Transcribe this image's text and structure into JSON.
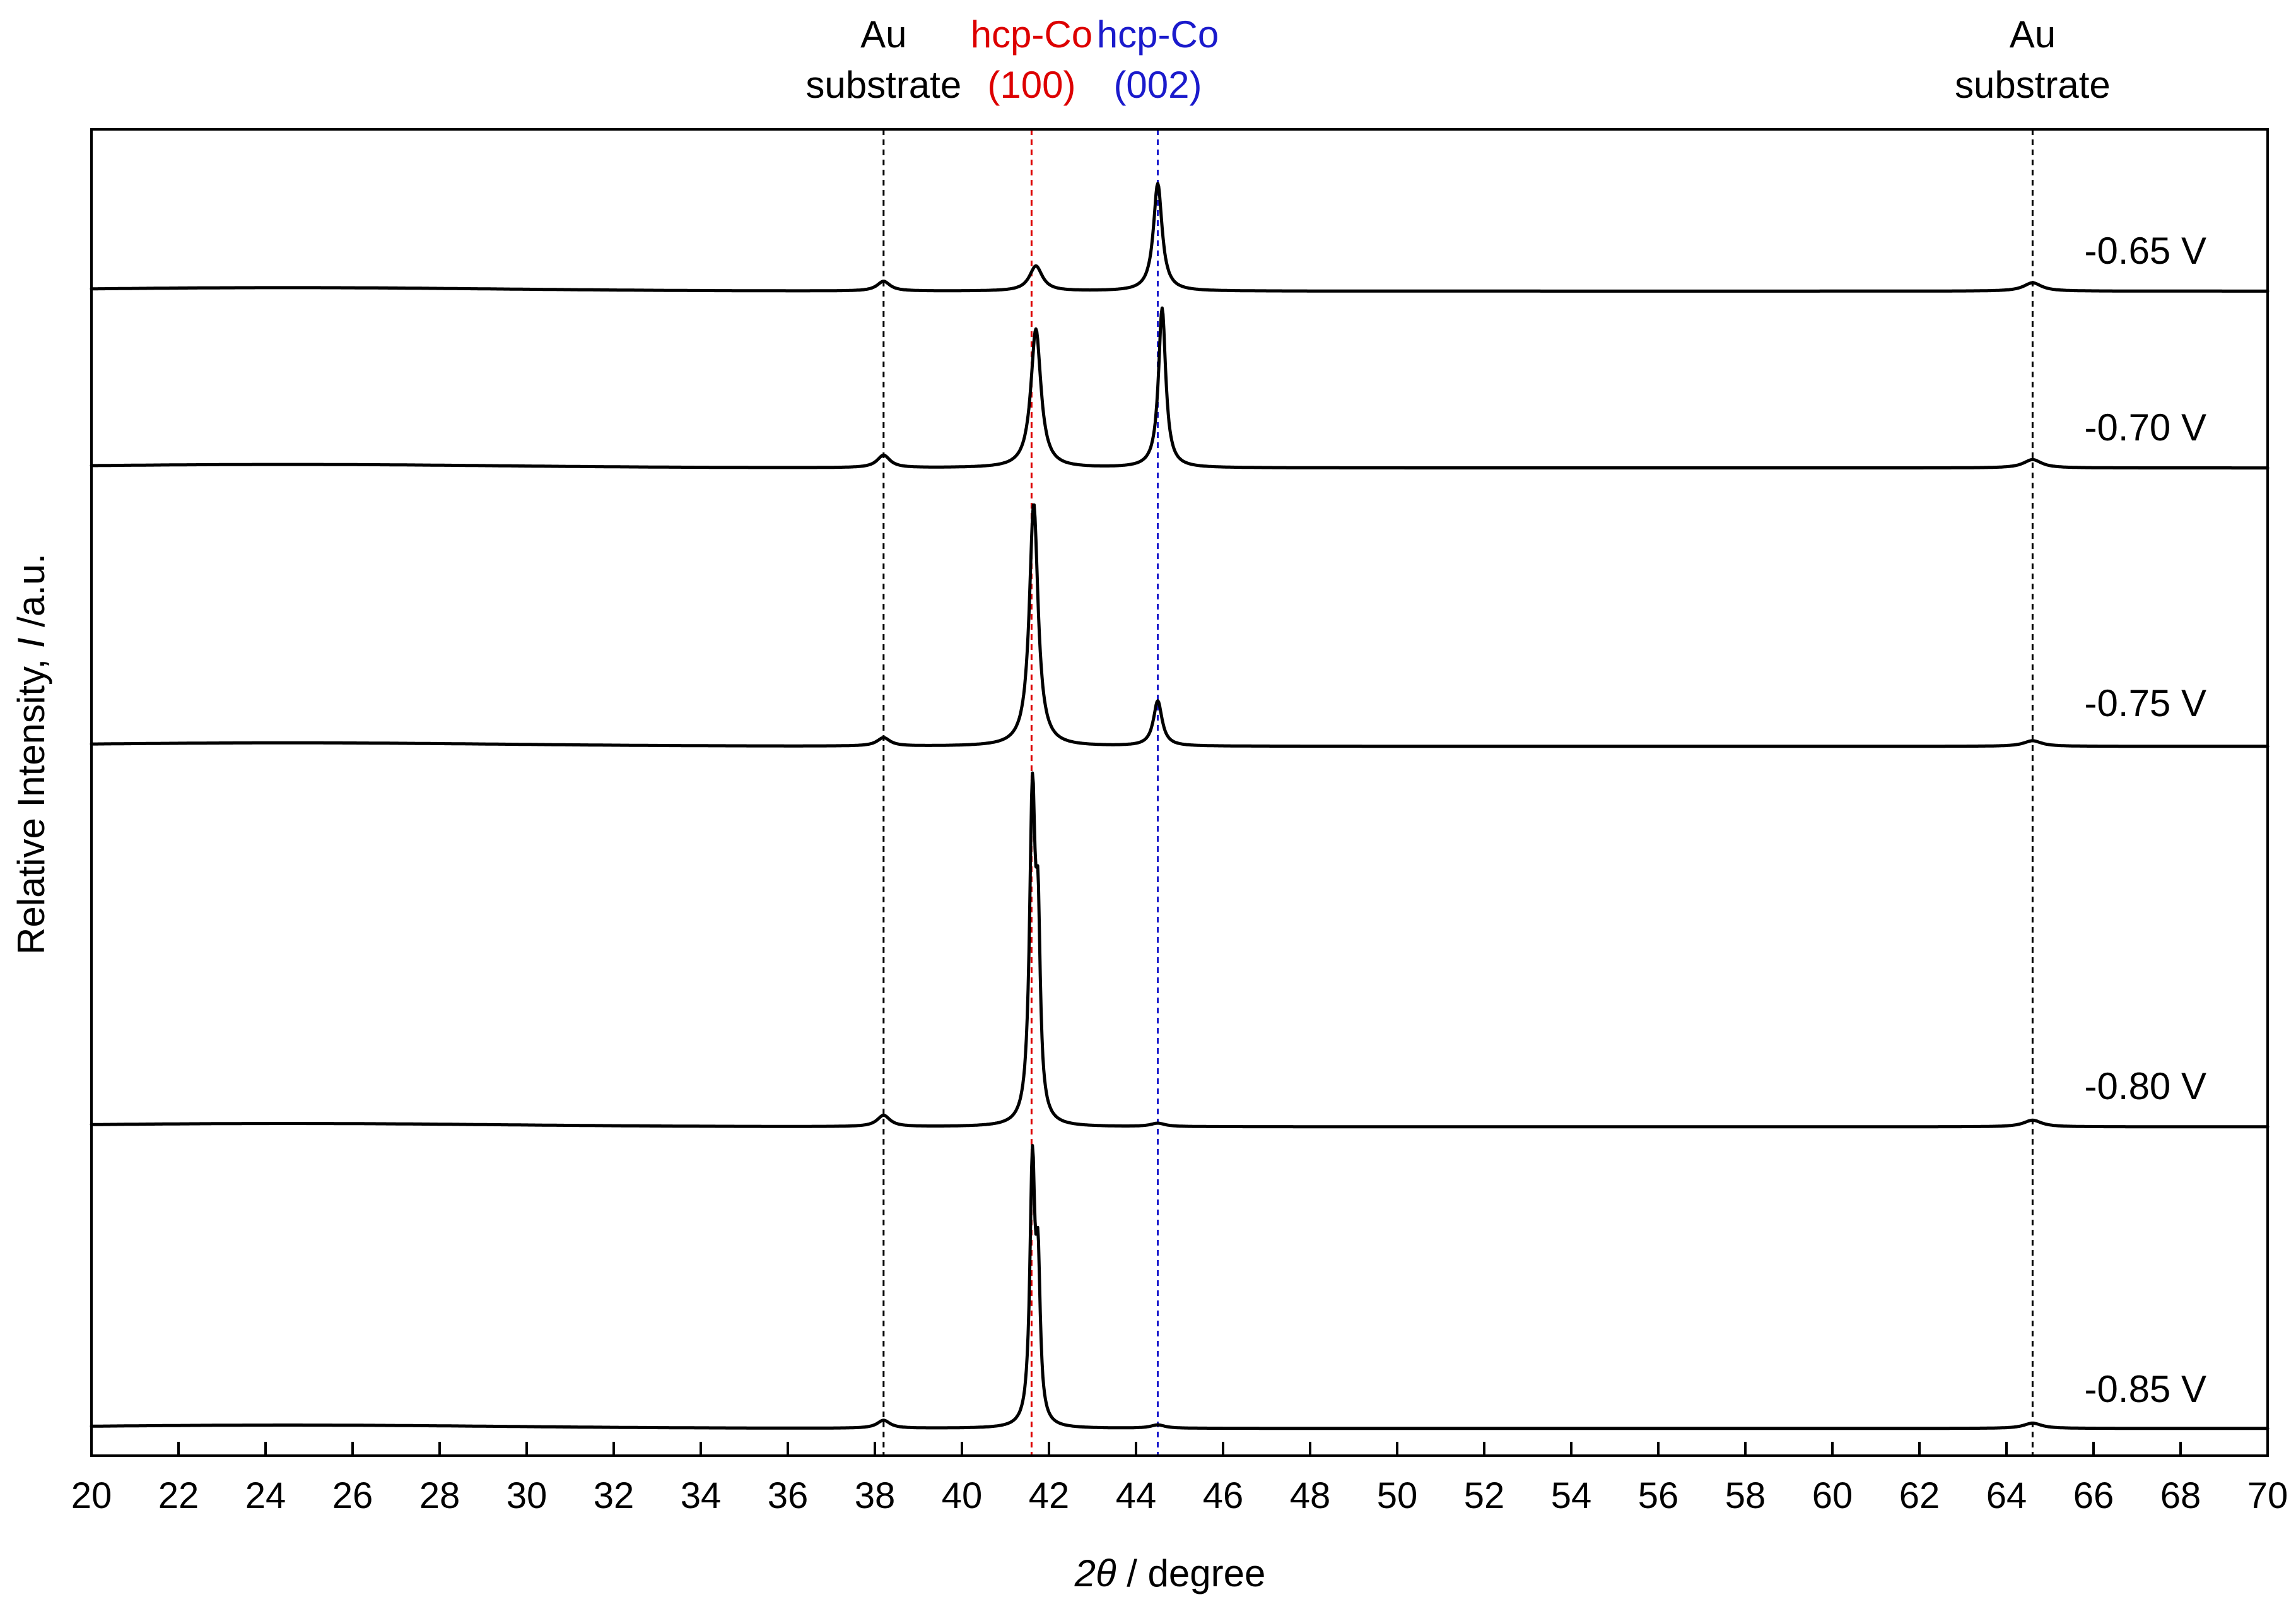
{
  "chart_data": {
    "type": "line",
    "xlabel_symbol": "2θ",
    "xlabel_rest": " / degree",
    "ylabel_pre": "Relative Intensity, ",
    "ylabel_symbol": "I",
    "ylabel_post": " /a.u.",
    "xlim": [
      20,
      70
    ],
    "x_ticks": [
      20,
      22,
      24,
      26,
      28,
      30,
      32,
      34,
      36,
      38,
      40,
      42,
      44,
      46,
      48,
      50,
      52,
      54,
      56,
      58,
      60,
      62,
      64,
      66,
      68,
      70
    ],
    "y_ticks": "none",
    "stacked": true,
    "grid": false,
    "reference_lines": [
      {
        "x": 38.2,
        "color": "#000000",
        "label_top": "Au",
        "label_bottom": "substrate"
      },
      {
        "x": 41.6,
        "color": "#dd0000",
        "label_top": "hcp-Co",
        "label_bottom": "(100)"
      },
      {
        "x": 44.5,
        "color": "#1a1acc",
        "label_top": "hcp-Co",
        "label_bottom": "(002)"
      },
      {
        "x": 64.6,
        "color": "#000000",
        "label_top": "Au",
        "label_bottom": "substrate"
      }
    ],
    "series": [
      {
        "name": "-0.65 V",
        "baseline": 0.06,
        "peaks": [
          {
            "x": 38.2,
            "height": 0.14,
            "width": 0.18
          },
          {
            "x": 41.7,
            "height": 0.36,
            "width": 0.18
          },
          {
            "x": 44.5,
            "height": 1.55,
            "width": 0.12
          },
          {
            "x": 64.6,
            "height": 0.12,
            "width": 0.25
          }
        ]
      },
      {
        "name": "-0.70 V",
        "baseline": 0.04,
        "peaks": [
          {
            "x": 38.2,
            "height": 0.18,
            "width": 0.18
          },
          {
            "x": 41.7,
            "height": 2.0,
            "width": 0.14
          },
          {
            "x": 44.6,
            "height": 2.3,
            "width": 0.1
          },
          {
            "x": 64.6,
            "height": 0.12,
            "width": 0.25
          }
        ]
      },
      {
        "name": "-0.75 V",
        "baseline": 0.02,
        "peaks": [
          {
            "x": 38.2,
            "height": 0.12,
            "width": 0.18
          },
          {
            "x": 41.65,
            "height": 3.5,
            "width": 0.12
          },
          {
            "x": 44.5,
            "height": 0.65,
            "width": 0.12
          },
          {
            "x": 64.6,
            "height": 0.08,
            "width": 0.25
          }
        ]
      },
      {
        "name": "-0.80 V",
        "baseline": 0.04,
        "peaks": [
          {
            "x": 38.2,
            "height": 0.17,
            "width": 0.18
          },
          {
            "x": 41.62,
            "height": 4.9,
            "width": 0.08
          },
          {
            "x": 41.75,
            "height": 2.5,
            "width": 0.06
          },
          {
            "x": 44.5,
            "height": 0.05,
            "width": 0.2
          },
          {
            "x": 64.6,
            "height": 0.1,
            "width": 0.25
          }
        ]
      },
      {
        "name": "-0.85 V",
        "baseline": 0.04,
        "peaks": [
          {
            "x": 38.2,
            "height": 0.12,
            "width": 0.18
          },
          {
            "x": 41.62,
            "height": 3.9,
            "width": 0.07
          },
          {
            "x": 41.75,
            "height": 2.1,
            "width": 0.06
          },
          {
            "x": 44.5,
            "height": 0.05,
            "width": 0.2
          },
          {
            "x": 64.6,
            "height": 0.08,
            "width": 0.25
          }
        ]
      }
    ]
  }
}
